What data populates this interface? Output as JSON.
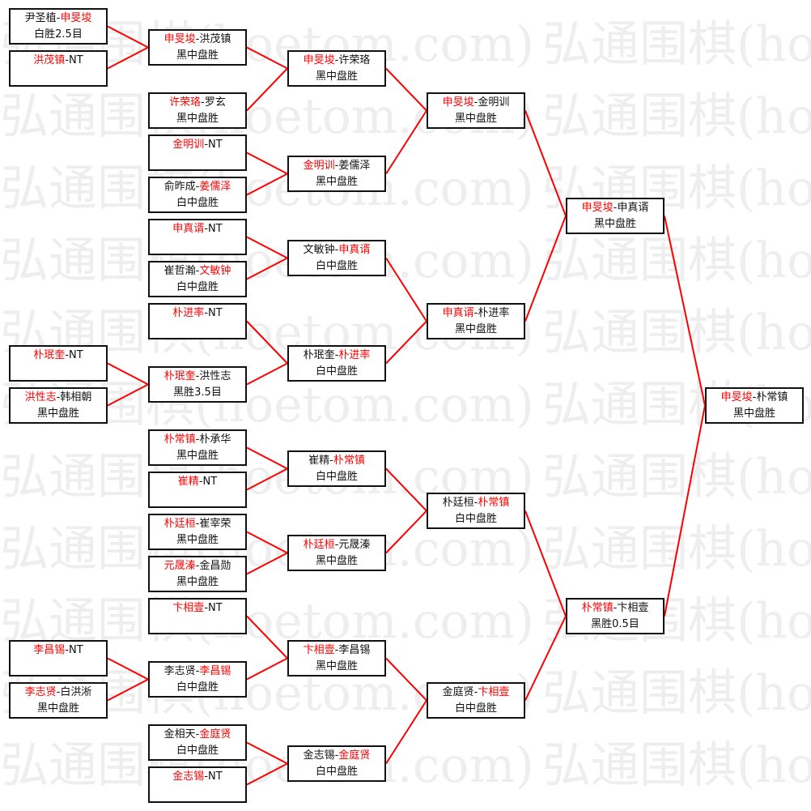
{
  "watermark": "弘通围棋(hoetom.com)",
  "colors": {
    "winner": "#ff0000",
    "line": "#ff0000",
    "border": "#111111"
  },
  "rounds": [
    [
      {
        "players": [
          "尹圣植",
          "申旻埈"
        ],
        "winner": 1,
        "result": "白胜2.5目"
      },
      {
        "players": [
          "洪茂镇",
          "NT"
        ],
        "winner": 0,
        "result": ""
      },
      {
        "players": [
          "朴珉奎",
          "NT"
        ],
        "winner": 0,
        "result": ""
      },
      {
        "players": [
          "洪性志",
          "韩相朝"
        ],
        "winner": 0,
        "result": "黑中盘胜"
      },
      {
        "players": [
          "李昌锡",
          "NT"
        ],
        "winner": 0,
        "result": ""
      },
      {
        "players": [
          "李志贤",
          "白洪淅"
        ],
        "winner": 0,
        "result": "黑中盘胜"
      }
    ],
    [
      {
        "players": [
          "申旻埈",
          "洪茂镇"
        ],
        "winner": 0,
        "result": "黑中盘胜"
      },
      {
        "players": [
          "许荣珞",
          "罗玄"
        ],
        "winner": 0,
        "result": "黑中盘胜"
      },
      {
        "players": [
          "金明训",
          "NT"
        ],
        "winner": 0,
        "result": ""
      },
      {
        "players": [
          "俞昨成",
          "姜儒泽"
        ],
        "winner": 1,
        "result": "白中盘胜"
      },
      {
        "players": [
          "申真谞",
          "NT"
        ],
        "winner": 0,
        "result": ""
      },
      {
        "players": [
          "崔哲瀚",
          "文敏钟"
        ],
        "winner": 1,
        "result": "白中盘胜"
      },
      {
        "players": [
          "朴进率",
          "NT"
        ],
        "winner": 0,
        "result": ""
      },
      {
        "players": [
          "朴珉奎",
          "洪性志"
        ],
        "winner": 0,
        "result": "黑胜3.5目"
      },
      {
        "players": [
          "朴常镇",
          "朴承华"
        ],
        "winner": 0,
        "result": "黑中盘胜"
      },
      {
        "players": [
          "崔精",
          "NT"
        ],
        "winner": 0,
        "result": ""
      },
      {
        "players": [
          "朴廷桓",
          "崔宰荣"
        ],
        "winner": 0,
        "result": "黑中盘胜"
      },
      {
        "players": [
          "元晟溱",
          "金昌勋"
        ],
        "winner": 0,
        "result": "黑中盘胜"
      },
      {
        "players": [
          "卞相壹",
          "NT"
        ],
        "winner": 0,
        "result": ""
      },
      {
        "players": [
          "李志贤",
          "李昌锡"
        ],
        "winner": 1,
        "result": "白中盘胜"
      },
      {
        "players": [
          "金相天",
          "金庭贤"
        ],
        "winner": 1,
        "result": "白中盘胜"
      },
      {
        "players": [
          "金志锡",
          "NT"
        ],
        "winner": 0,
        "result": ""
      }
    ],
    [
      {
        "players": [
          "申旻埈",
          "许荣珞"
        ],
        "winner": 0,
        "result": "黑中盘胜"
      },
      {
        "players": [
          "金明训",
          "姜儒泽"
        ],
        "winner": 0,
        "result": "黑中盘胜"
      },
      {
        "players": [
          "文敏钟",
          "申真谞"
        ],
        "winner": 1,
        "result": "白中盘胜"
      },
      {
        "players": [
          "朴珉奎",
          "朴进率"
        ],
        "winner": 1,
        "result": "白中盘胜"
      },
      {
        "players": [
          "崔精",
          "朴常镇"
        ],
        "winner": 1,
        "result": "白中盘胜"
      },
      {
        "players": [
          "朴廷桓",
          "元晟溱"
        ],
        "winner": 0,
        "result": "黑中盘胜"
      },
      {
        "players": [
          "卞相壹",
          "李昌锡"
        ],
        "winner": 0,
        "result": "黑中盘胜"
      },
      {
        "players": [
          "金志锡",
          "金庭贤"
        ],
        "winner": 1,
        "result": "白中盘胜"
      }
    ],
    [
      {
        "players": [
          "申旻埈",
          "金明训"
        ],
        "winner": 0,
        "result": "黑中盘胜"
      },
      {
        "players": [
          "申真谞",
          "朴进率"
        ],
        "winner": 0,
        "result": "黑中盘胜"
      },
      {
        "players": [
          "朴廷桓",
          "朴常镇"
        ],
        "winner": 1,
        "result": "白中盘胜"
      },
      {
        "players": [
          "金庭贤",
          "卞相壹"
        ],
        "winner": 1,
        "result": "白中盘胜"
      }
    ],
    [
      {
        "players": [
          "申旻埈",
          "申真谞"
        ],
        "winner": 0,
        "result": "黑中盘胜"
      },
      {
        "players": [
          "朴常镇",
          "卞相壹"
        ],
        "winner": 0,
        "result": "黑胜0.5目"
      }
    ],
    [
      {
        "players": [
          "申旻埈",
          "朴常镇"
        ],
        "winner": 0,
        "result": "黑中盘胜"
      }
    ]
  ]
}
